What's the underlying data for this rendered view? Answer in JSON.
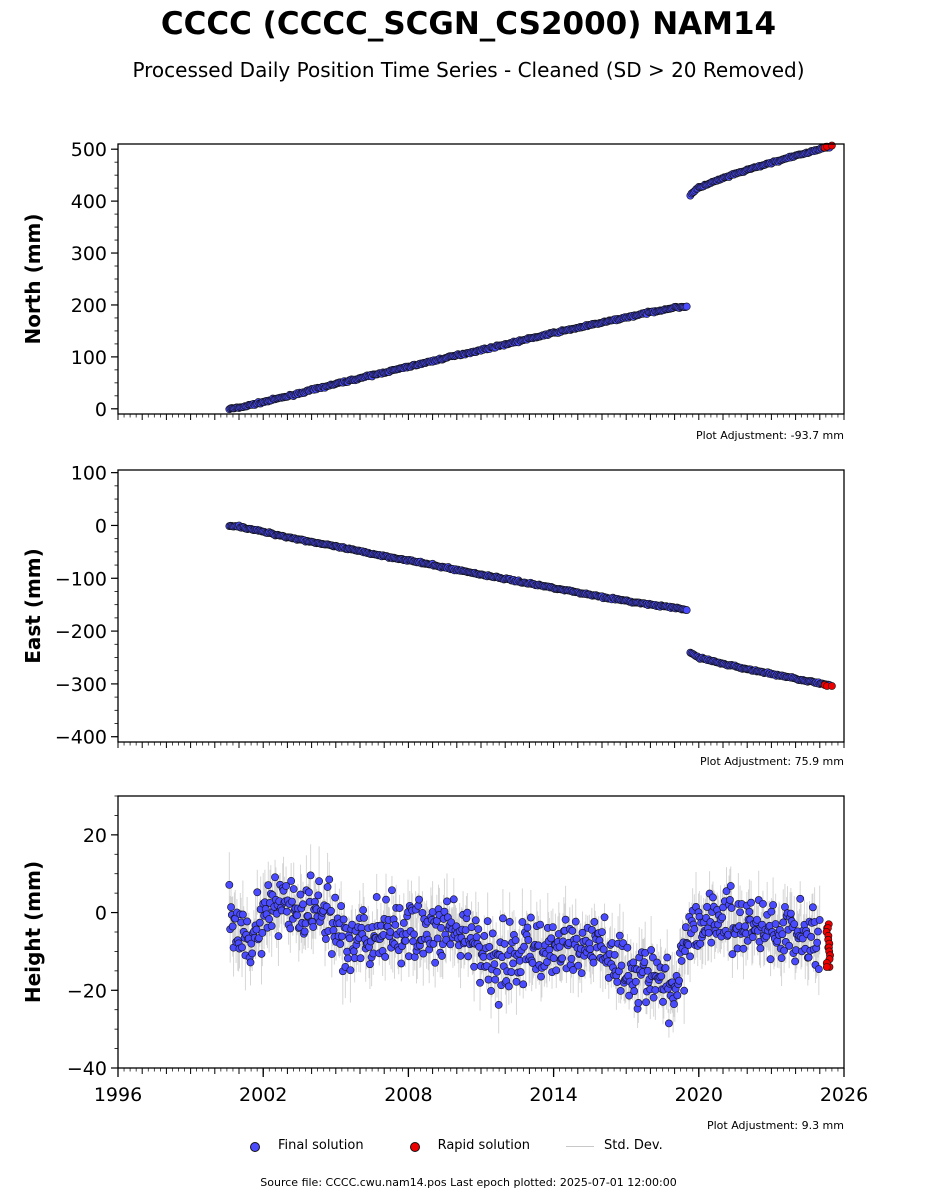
{
  "title": "CCCC (CCCC_SCGN_CS2000) NAM14",
  "subtitle": "Processed Daily Position Time Series - Cleaned (SD > 20 Removed)",
  "footer": "Source file: CCCC.cwu.nam14.pos  Last epoch plotted: 2025-07-01 12:00:00",
  "legend": {
    "final": "Final solution",
    "rapid": "Rapid solution",
    "std": "Std. Dev."
  },
  "colors": {
    "final": "#4a4aff",
    "rapid": "#ee0000",
    "std": "#b4b4b4",
    "edge": "#111111"
  },
  "chart_data": [
    {
      "type": "scatter",
      "ylabel": "North (mm)",
      "adjustment": "Plot Adjustment: -93.7 mm",
      "xlim": [
        1996,
        2026
      ],
      "ylim": [
        -10,
        510
      ],
      "yticks": [
        0,
        100,
        200,
        300,
        400,
        500
      ],
      "ytick_labels": [
        "0",
        "100",
        "200",
        "300",
        "400",
        "500"
      ],
      "series": [
        {
          "role": "final",
          "x": [
            2000.6,
            2001.0,
            2002.0,
            2003.0,
            2004.0,
            2005.0,
            2006.0,
            2007.0,
            2008.0,
            2009.0,
            2010.0,
            2011.0,
            2012.0,
            2013.0,
            2014.0,
            2015.0,
            2016.0,
            2017.0,
            2018.0,
            2019.0,
            2019.5,
            2019.6,
            2020.0,
            2021.0,
            2022.0,
            2023.0,
            2024.0,
            2025.0,
            2025.4
          ],
          "y": [
            0,
            2,
            13,
            24,
            36,
            48,
            59,
            70,
            81,
            92,
            103,
            113,
            124,
            135,
            146,
            156,
            166,
            176,
            186,
            195,
            197,
            410,
            426,
            444,
            460,
            474,
            487,
            500,
            505
          ]
        },
        {
          "role": "rapid",
          "x": [
            2025.2,
            2025.3,
            2025.5
          ],
          "y": [
            503,
            505,
            507
          ]
        }
      ]
    },
    {
      "type": "scatter",
      "ylabel": "East (mm)",
      "adjustment": "Plot Adjustment: 75.9 mm",
      "xlim": [
        1996,
        2026
      ],
      "ylim": [
        -410,
        105
      ],
      "yticks": [
        100,
        0,
        -100,
        -200,
        -300,
        -400
      ],
      "ytick_labels": [
        "100",
        "0",
        "−100",
        "−200",
        "−300",
        "−400"
      ],
      "series": [
        {
          "role": "final",
          "x": [
            2000.6,
            2001.0,
            2002.0,
            2003.0,
            2004.0,
            2005.0,
            2006.0,
            2007.0,
            2008.0,
            2009.0,
            2010.0,
            2011.0,
            2012.0,
            2013.0,
            2014.0,
            2015.0,
            2016.0,
            2017.0,
            2018.0,
            2019.0,
            2019.5,
            2019.6,
            2020.0,
            2021.0,
            2022.0,
            2023.0,
            2024.0,
            2025.0,
            2025.4
          ],
          "y": [
            0,
            -2,
            -12,
            -22,
            -31,
            -40,
            -49,
            -58,
            -66,
            -75,
            -84,
            -93,
            -101,
            -110,
            -118,
            -127,
            -135,
            -143,
            -150,
            -156,
            -160,
            -240,
            -250,
            -262,
            -272,
            -281,
            -290,
            -299,
            -303
          ]
        },
        {
          "role": "rapid",
          "x": [
            2025.2,
            2025.3,
            2025.5
          ],
          "y": [
            -302,
            -304,
            -304
          ]
        }
      ]
    },
    {
      "type": "scatter",
      "ylabel": "Height (mm)",
      "adjustment": "Plot Adjustment: 9.3 mm",
      "xlim": [
        1996,
        2026
      ],
      "ylim": [
        -40,
        30
      ],
      "yticks": [
        20,
        0,
        -20,
        -40
      ],
      "ytick_labels": [
        "20",
        "0",
        "−20",
        "−40"
      ],
      "xticks": [
        1996,
        2002,
        2008,
        2014,
        2020,
        2026
      ],
      "xtick_labels": [
        "1996",
        "2002",
        "2008",
        "2014",
        "2020",
        "2026"
      ],
      "series": [
        {
          "role": "final",
          "x": [
            2000.6,
            2001.5,
            2002.5,
            2003.5,
            2004.5,
            2005.5,
            2006.5,
            2007.5,
            2008.5,
            2009.5,
            2010.5,
            2011.5,
            2012.5,
            2013.5,
            2014.5,
            2015.5,
            2016.5,
            2017.5,
            2018.5,
            2019.0,
            2019.5,
            2020.5,
            2021.5,
            2022.5,
            2023.5,
            2024.5,
            2025.0
          ],
          "y": [
            -2,
            -5,
            2,
            0,
            0,
            -8,
            -6,
            -5,
            -4,
            -6,
            -7,
            -12,
            -10,
            -9,
            -9,
            -8,
            -12,
            -16,
            -18,
            -22,
            -5,
            -1,
            -3,
            -3,
            -5,
            -6,
            -7
          ]
        },
        {
          "role": "rapid",
          "x": [
            2025.3,
            2025.35,
            2025.4
          ],
          "y": [
            -4,
            -9,
            -14
          ]
        }
      ]
    }
  ]
}
